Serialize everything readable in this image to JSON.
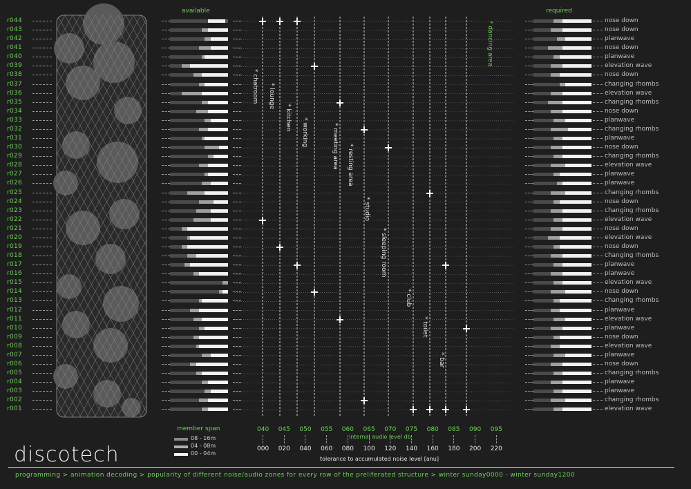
{
  "headers": {
    "available": "available",
    "required": "required"
  },
  "rows": [
    {
      "id": "r044",
      "zone": "nose down",
      "avail": [
        0.65,
        0.0,
        0.3
      ],
      "req": [
        0.35,
        0.15,
        0.5
      ]
    },
    {
      "id": "r043",
      "zone": "nose down",
      "avail": [
        0.55,
        0.1,
        0.35
      ],
      "req": [
        0.3,
        0.2,
        0.5
      ]
    },
    {
      "id": "r042",
      "zone": "planwave",
      "avail": [
        0.6,
        0.1,
        0.3
      ],
      "req": [
        0.4,
        0.15,
        0.45
      ]
    },
    {
      "id": "r041",
      "zone": "nose down",
      "avail": [
        0.5,
        0.2,
        0.3
      ],
      "req": [
        0.25,
        0.25,
        0.5
      ]
    },
    {
      "id": "r040",
      "zone": "planwave",
      "avail": [
        0.55,
        0.05,
        0.4
      ],
      "req": [
        0.35,
        0.1,
        0.55
      ]
    },
    {
      "id": "r039",
      "zone": "elevation wave",
      "avail": [
        0.2,
        0.15,
        0.65
      ],
      "req": [
        0.3,
        0.2,
        0.5
      ]
    },
    {
      "id": "r038",
      "zone": "nose down",
      "avail": [
        0.4,
        0.15,
        0.45
      ],
      "req": [
        0.3,
        0.15,
        0.55
      ]
    },
    {
      "id": "r037",
      "zone": "changing rhombs",
      "avail": [
        0.5,
        0.1,
        0.4
      ],
      "req": [
        0.45,
        0.1,
        0.45
      ]
    },
    {
      "id": "r036",
      "zone": "elevation wave",
      "avail": [
        0.2,
        0.35,
        0.45
      ],
      "req": [
        0.3,
        0.2,
        0.5
      ]
    },
    {
      "id": "r035",
      "zone": "changing rhombs",
      "avail": [
        0.55,
        0.1,
        0.35
      ],
      "req": [
        0.25,
        0.25,
        0.5
      ]
    },
    {
      "id": "r034",
      "zone": "nose down",
      "avail": [
        0.45,
        0.2,
        0.35
      ],
      "req": [
        0.3,
        0.2,
        0.5
      ]
    },
    {
      "id": "r033",
      "zone": "planwave",
      "avail": [
        0.6,
        0.1,
        0.3
      ],
      "req": [
        0.35,
        0.2,
        0.45
      ]
    },
    {
      "id": "r032",
      "zone": "changing rhombs",
      "avail": [
        0.5,
        0.15,
        0.35
      ],
      "req": [
        0.3,
        0.3,
        0.4
      ]
    },
    {
      "id": "r031",
      "zone": "planwave",
      "avail": [
        0.55,
        0.05,
        0.4
      ],
      "req": [
        0.35,
        0.15,
        0.5
      ]
    },
    {
      "id": "r030",
      "zone": "nose down",
      "avail": [
        0.6,
        0.25,
        0.15
      ],
      "req": [
        0.3,
        0.2,
        0.5
      ]
    },
    {
      "id": "r029",
      "zone": "changing rhombs",
      "avail": [
        0.65,
        0.1,
        0.25
      ],
      "req": [
        0.35,
        0.15,
        0.5
      ]
    },
    {
      "id": "r028",
      "zone": "elevation wave",
      "avail": [
        0.5,
        0.15,
        0.35
      ],
      "req": [
        0.3,
        0.25,
        0.45
      ]
    },
    {
      "id": "r027",
      "zone": "planwave",
      "avail": [
        0.6,
        0.05,
        0.35
      ],
      "req": [
        0.35,
        0.1,
        0.55
      ]
    },
    {
      "id": "r026",
      "zone": "planwave",
      "avail": [
        0.55,
        0.15,
        0.3
      ],
      "req": [
        0.4,
        0.1,
        0.5
      ]
    },
    {
      "id": "r025",
      "zone": "changing rhombs",
      "avail": [
        0.3,
        0.3,
        0.4
      ],
      "req": [
        0.3,
        0.25,
        0.45
      ]
    },
    {
      "id": "r024",
      "zone": "nose down",
      "avail": [
        0.5,
        0.25,
        0.25
      ],
      "req": [
        0.35,
        0.1,
        0.55
      ]
    },
    {
      "id": "r023",
      "zone": "changing rhombs",
      "avail": [
        0.45,
        0.25,
        0.3
      ],
      "req": [
        0.3,
        0.2,
        0.5
      ]
    },
    {
      "id": "r022",
      "zone": "elevation wave",
      "avail": [
        0.4,
        0.3,
        0.3
      ],
      "req": [
        0.35,
        0.15,
        0.5
      ]
    },
    {
      "id": "r021",
      "zone": "nose down",
      "avail": [
        0.2,
        0.1,
        0.7
      ],
      "req": [
        0.3,
        0.2,
        0.5
      ]
    },
    {
      "id": "r020",
      "zone": "elevation wave",
      "avail": [
        0.3,
        0.05,
        0.65
      ],
      "req": [
        0.25,
        0.2,
        0.55
      ]
    },
    {
      "id": "r019",
      "zone": "nose down",
      "avail": [
        0.2,
        0.1,
        0.7
      ],
      "req": [
        0.35,
        0.1,
        0.55
      ]
    },
    {
      "id": "r018",
      "zone": "changing rhombs",
      "avail": [
        0.3,
        0.15,
        0.55
      ],
      "req": [
        0.3,
        0.2,
        0.5
      ]
    },
    {
      "id": "r017",
      "zone": "planwave",
      "avail": [
        0.25,
        0.1,
        0.65
      ],
      "req": [
        0.35,
        0.15,
        0.5
      ]
    },
    {
      "id": "r016",
      "zone": "planwave",
      "avail": [
        0.4,
        0.1,
        0.5
      ],
      "req": [
        0.3,
        0.2,
        0.5
      ]
    },
    {
      "id": "r015",
      "zone": "elevation wave",
      "avail": [
        0.9,
        0.1,
        0.0
      ],
      "req": [
        0.35,
        0.15,
        0.5
      ]
    },
    {
      "id": "r014",
      "zone": "nose down",
      "avail": [
        0.85,
        0.05,
        0.1
      ],
      "req": [
        0.3,
        0.25,
        0.45
      ]
    },
    {
      "id": "r013",
      "zone": "changing rhombs",
      "avail": [
        0.5,
        0.05,
        0.45
      ],
      "req": [
        0.35,
        0.1,
        0.55
      ]
    },
    {
      "id": "r012",
      "zone": "planwave",
      "avail": [
        0.35,
        0.15,
        0.5
      ],
      "req": [
        0.3,
        0.15,
        0.55
      ]
    },
    {
      "id": "r011",
      "zone": "elevation wave",
      "avail": [
        0.4,
        0.15,
        0.45
      ],
      "req": [
        0.35,
        0.2,
        0.45
      ]
    },
    {
      "id": "r010",
      "zone": "planwave",
      "avail": [
        0.5,
        0.1,
        0.4
      ],
      "req": [
        0.3,
        0.2,
        0.5
      ]
    },
    {
      "id": "r009",
      "zone": "nose down",
      "avail": [
        0.4,
        0.1,
        0.5
      ],
      "req": [
        0.35,
        0.1,
        0.55
      ]
    },
    {
      "id": "r008",
      "zone": "elevation wave",
      "avail": [
        0.45,
        0.05,
        0.5
      ],
      "req": [
        0.3,
        0.15,
        0.55
      ]
    },
    {
      "id": "r007",
      "zone": "planwave",
      "avail": [
        0.55,
        0.15,
        0.3
      ],
      "req": [
        0.35,
        0.2,
        0.45
      ]
    },
    {
      "id": "r006",
      "zone": "nose down",
      "avail": [
        0.35,
        0.1,
        0.55
      ],
      "req": [
        0.3,
        0.2,
        0.5
      ]
    },
    {
      "id": "r005",
      "zone": "changing rhombs",
      "avail": [
        0.45,
        0.1,
        0.45
      ],
      "req": [
        0.35,
        0.15,
        0.5
      ]
    },
    {
      "id": "r004",
      "zone": "planwave",
      "avail": [
        0.55,
        0.1,
        0.35
      ],
      "req": [
        0.3,
        0.2,
        0.5
      ]
    },
    {
      "id": "r003",
      "zone": "planwave",
      "avail": [
        0.6,
        0.1,
        0.3
      ],
      "req": [
        0.35,
        0.15,
        0.5
      ]
    },
    {
      "id": "r002",
      "zone": "changing rhombs",
      "avail": [
        0.5,
        0.15,
        0.35
      ],
      "req": [
        0.3,
        0.25,
        0.45
      ]
    },
    {
      "id": "r001",
      "zone": "elevation wave",
      "avail": [
        0.55,
        0.1,
        0.35
      ],
      "req": [
        0.35,
        0.15,
        0.5
      ]
    }
  ],
  "zone_columns": [
    {
      "label": "dancing area",
      "column": 13
    },
    {
      "label": "chatroom",
      "column": 1
    },
    {
      "label": "lounge",
      "column": 2
    },
    {
      "label": "kitchen",
      "column": 3
    },
    {
      "label": "working",
      "column": 4
    },
    {
      "label": "meeting area",
      "column": 5
    },
    {
      "label": "resting area",
      "column": 5
    },
    {
      "label": "studio",
      "column": 6
    },
    {
      "label": "sleeping room",
      "column": 7
    },
    {
      "label": "club",
      "column": 8
    },
    {
      "label": "toilet",
      "column": 9
    },
    {
      "label": "bar",
      "column": 10
    }
  ],
  "markers": [
    {
      "row": "r044",
      "column": 1
    },
    {
      "row": "r044",
      "column": 2
    },
    {
      "row": "r044",
      "column": 3
    },
    {
      "row": "r039",
      "column": 4
    },
    {
      "row": "r035",
      "column": 5
    },
    {
      "row": "r032",
      "column": 6
    },
    {
      "row": "r030",
      "column": 7
    },
    {
      "row": "r025",
      "column": 9
    },
    {
      "row": "r022",
      "column": 1
    },
    {
      "row": "r019",
      "column": 2
    },
    {
      "row": "r017",
      "column": 3
    },
    {
      "row": "r017",
      "column": 10
    },
    {
      "row": "r014",
      "column": 4
    },
    {
      "row": "r011",
      "column": 5
    },
    {
      "row": "r010",
      "column": 11
    },
    {
      "row": "r002",
      "column": 6
    },
    {
      "row": "r001",
      "column": 8
    },
    {
      "row": "r001",
      "column": 9
    },
    {
      "row": "r001",
      "column": 10
    },
    {
      "row": "r001",
      "column": 11
    }
  ],
  "legend": {
    "title": "member span",
    "items": [
      {
        "label": "08 - 16m",
        "color": "#8a8a8a"
      },
      {
        "label": "04 - 08m",
        "color": "#b0b0b0"
      },
      {
        "label": "00 - 04m",
        "color": "#f2f2f2"
      }
    ]
  },
  "axis": {
    "top_ticks": [
      "040",
      "045",
      "050",
      "055",
      "060",
      "065",
      "070",
      "075",
      "080",
      "085",
      "090",
      "095"
    ],
    "top_label": "internal audio level db",
    "bottom_ticks": [
      "000",
      "020",
      "040",
      "060",
      "080",
      "100",
      "120",
      "140",
      "160",
      "180",
      "200",
      "220"
    ],
    "bottom_label": "tolerance to accumulated noise level [anu]"
  },
  "title": "discotech",
  "footer": "programming > animation decoding > popularity of different noise/audio zones for every row of the preliferated structure > winter sunday0000 - winter sunday1200",
  "colors": {
    "background": "#1e1e1e",
    "accent": "#6fd05a",
    "avail_dark": "#4a4a4a",
    "avail_mid": "#a0a0a0",
    "avail_light": "#f2f2f2"
  }
}
